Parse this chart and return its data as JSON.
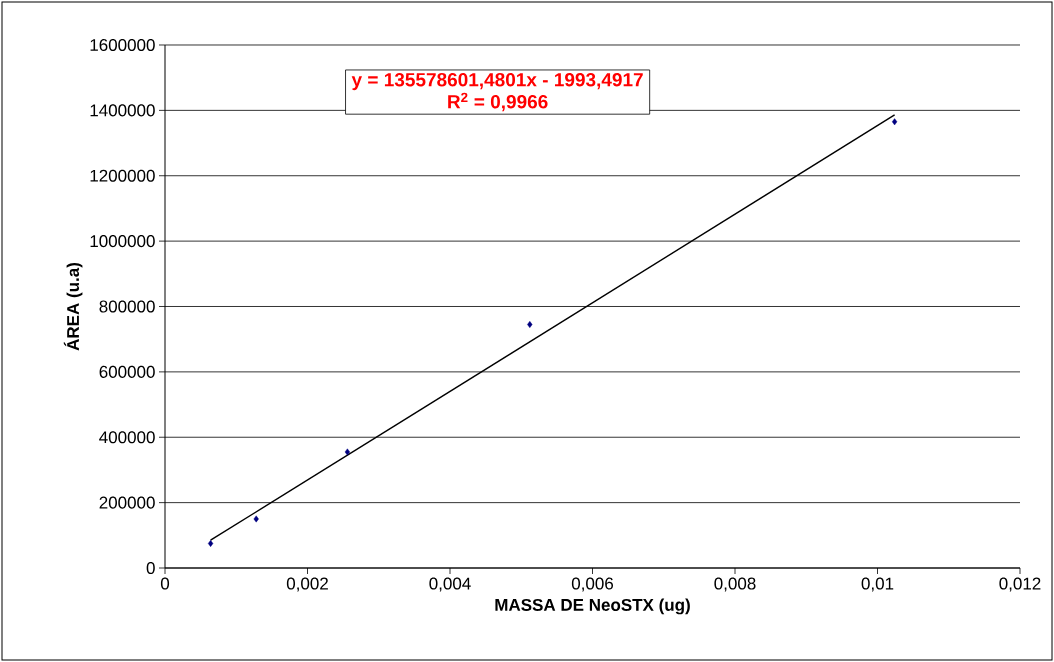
{
  "chart_data": {
    "type": "scatter",
    "xlabel": "MASSA DE NeoSTX (ug)",
    "ylabel": "ÁREA (u.a)",
    "annotations": [
      "y = 135578601,4801x - 1993,4917",
      "R$^{2}$ = 0,9966"
    ],
    "xlim": [
      0,
      0.012
    ],
    "ylim": [
      0,
      1600000
    ],
    "xticks": [
      0,
      {
        "value": 0.002,
        "label": "0,002"
      },
      {
        "value": 0.004,
        "label": "0,004"
      },
      {
        "value": 0.006,
        "label": "0,006"
      },
      {
        "value": 0.008,
        "label": "0,008"
      },
      {
        "value": 0.01,
        "label": "0,01"
      },
      {
        "value": 0.012,
        "label": "0,012"
      }
    ],
    "yticks": [
      0,
      200000,
      400000,
      600000,
      800000,
      1000000,
      1200000,
      1400000,
      1600000
    ],
    "grid": "y",
    "series": [
      {
        "color": "#000080",
        "marker": "diamond",
        "x": [
          0.00064,
          0.00128,
          0.00256,
          0.00512,
          0.01024
        ],
        "values": [
          75000,
          150000,
          355000,
          745000,
          1365000
        ]
      },
      {
        "type": "line",
        "color": "#000000",
        "marker": "none",
        "line_style": "solid",
        "x": [
          0.00064,
          0.01024
        ],
        "values": [
          85000,
          1386000
        ]
      }
    ]
  }
}
